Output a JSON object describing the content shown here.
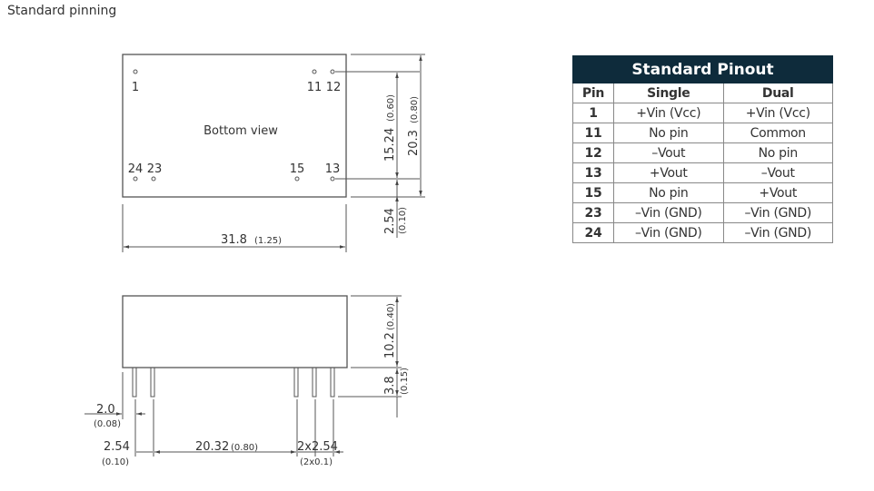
{
  "section_title": "Standard pinning",
  "bottom_view": {
    "label": "Bottom view",
    "pins": [
      "1",
      "11",
      "12",
      "24",
      "23",
      "15",
      "13"
    ],
    "dims": {
      "width": "31.8",
      "width_in": "(1.25)",
      "pin_span": "15.24",
      "pin_span_in": "(0.60)",
      "height": "20.3",
      "height_in": "(0.80)",
      "edge": "2.54",
      "edge_in": "(0.10)"
    }
  },
  "side_view": {
    "dims": {
      "body_h": "10.2",
      "body_h_in": "(0.40)",
      "pin_len": "3.8",
      "pin_len_in": "(0.15)",
      "offset": "2.0",
      "offset_in": "(0.08)",
      "pitch": "2.54",
      "pitch_in": "(0.10)",
      "span": "20.32",
      "span_in": "(0.80)",
      "pitch2": "2x2.54",
      "pitch2_in": "(2x0.1)"
    }
  },
  "pinout": {
    "title": "Standard Pinout",
    "headers": [
      "Pin",
      "Single",
      "Dual"
    ],
    "rows": [
      [
        "1",
        "+Vin (Vcc)",
        "+Vin (Vcc)"
      ],
      [
        "11",
        "No pin",
        "Common"
      ],
      [
        "12",
        "–Vout",
        "No pin"
      ],
      [
        "13",
        "+Vout",
        "–Vout"
      ],
      [
        "15",
        "No pin",
        "+Vout"
      ],
      [
        "23",
        "–Vin (GND)",
        "–Vin (GND)"
      ],
      [
        "24",
        "–Vin (GND)",
        "–Vin (GND)"
      ]
    ],
    "header_color": "#0e2b3b"
  }
}
